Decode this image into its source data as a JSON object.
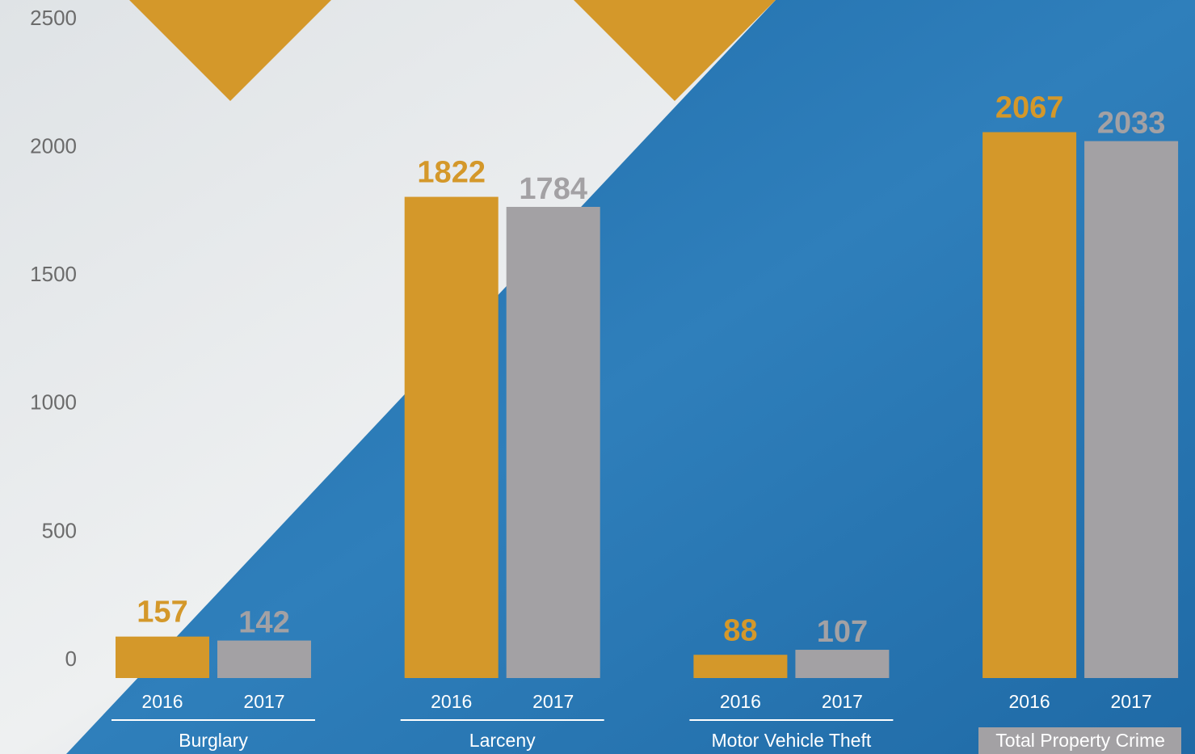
{
  "chart_data": {
    "type": "bar",
    "categories": [
      "Burglary",
      "Larceny",
      "Motor Vehicle Theft",
      "Total Property Crime"
    ],
    "series": [
      {
        "name": "2016",
        "color": "#d4982a",
        "values": [
          157,
          1822,
          88,
          2067
        ]
      },
      {
        "name": "2017",
        "color": "#a3a1a4",
        "values": [
          142,
          1784,
          107,
          2033
        ]
      }
    ],
    "ylim": [
      0,
      2500
    ],
    "yticks": [
      0,
      500,
      1000,
      1500,
      2000,
      2500
    ],
    "grid": false
  }
}
